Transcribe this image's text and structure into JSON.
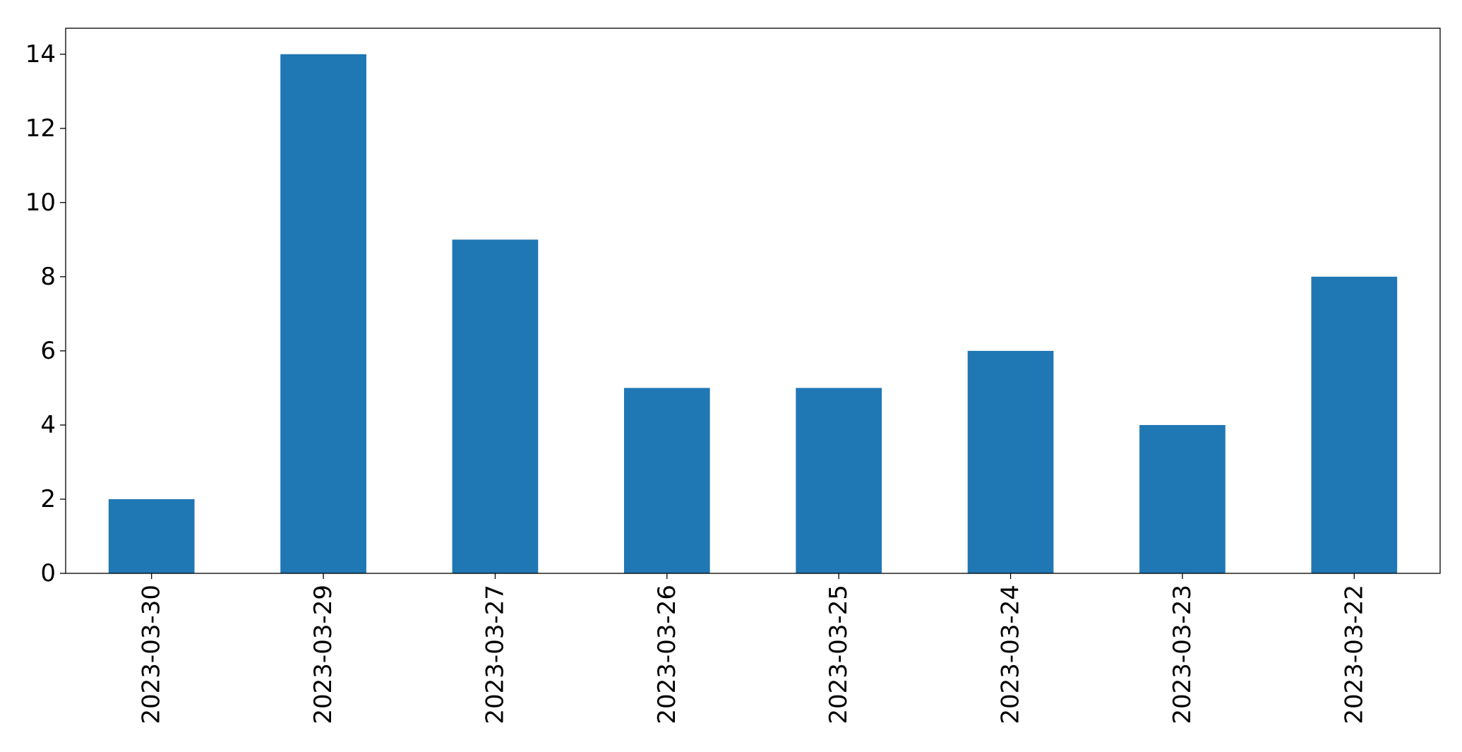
{
  "chart_data": {
    "type": "bar",
    "categories": [
      "2023-03-30",
      "2023-03-29",
      "2023-03-27",
      "2023-03-26",
      "2023-03-25",
      "2023-03-24",
      "2023-03-23",
      "2023-03-22"
    ],
    "values": [
      2,
      14,
      9,
      5,
      5,
      6,
      4,
      8
    ],
    "title": "",
    "xlabel": "",
    "ylabel": "",
    "ylim": [
      0,
      14.7
    ],
    "yticks": [
      0,
      2,
      4,
      6,
      8,
      10,
      12,
      14
    ],
    "grid": false,
    "bar_color": "#1f77b4"
  }
}
